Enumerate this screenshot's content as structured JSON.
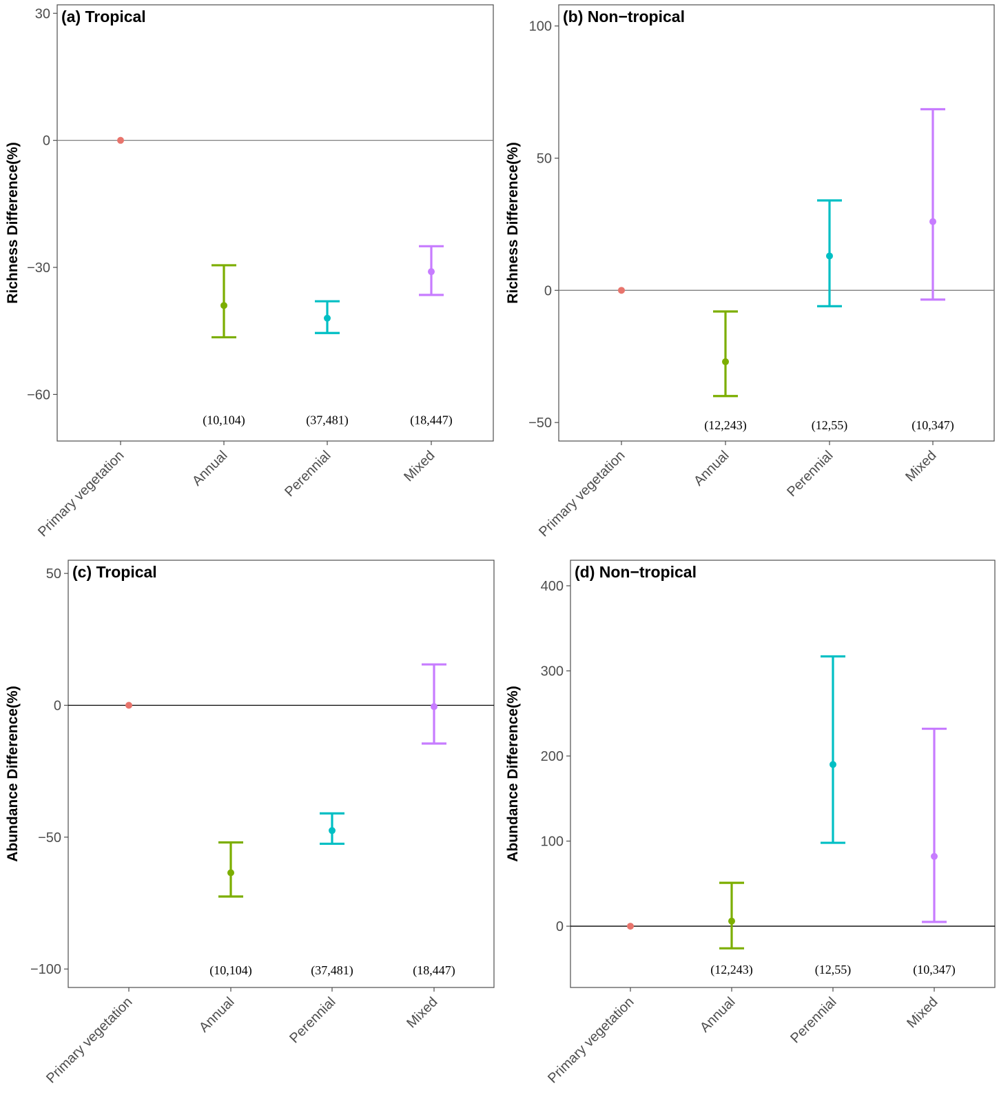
{
  "chart_data": [
    {
      "type": "errorbar",
      "title": "(a) Tropical",
      "ylabel": "Richness Difference(%)",
      "ylim": [
        -71,
        32
      ],
      "yticks": [
        30,
        0,
        -30,
        -60
      ],
      "ytick_labels": [
        "30",
        "0",
        "−30",
        "−60"
      ],
      "categories": [
        "Primary vegetation",
        "Annual",
        "Perennial",
        "Mixed"
      ],
      "values": [
        0,
        -39,
        -42,
        -31
      ],
      "lower": [
        null,
        -46.5,
        -45.5,
        -36.5
      ],
      "upper": [
        null,
        -29.5,
        -38,
        -25
      ],
      "n_labels": [
        "",
        "(10,104)",
        "(37,481)",
        "(18,447)"
      ],
      "n_label_y": -66,
      "zero_line_color": "#7f7f7f"
    },
    {
      "type": "errorbar",
      "title": "(b) Non−tropical",
      "ylabel": "Richness Difference(%)",
      "ylim": [
        -57,
        108
      ],
      "yticks": [
        100,
        50,
        0,
        -50
      ],
      "ytick_labels": [
        "100",
        "50",
        "0",
        "−50"
      ],
      "categories": [
        "Primary vegetation",
        "Annual",
        "Perennial",
        "Mixed"
      ],
      "values": [
        0,
        -27,
        13,
        26
      ],
      "lower": [
        null,
        -40,
        -6,
        -3.5
      ],
      "upper": [
        null,
        -8,
        34,
        68.5
      ],
      "n_labels": [
        "",
        "(12,243)",
        "(12,55)",
        "(10,347)"
      ],
      "n_label_y": -51,
      "zero_line_color": "#7f7f7f"
    },
    {
      "type": "errorbar",
      "title": "(c) Tropical",
      "ylabel": "Abundance Difference(%)",
      "ylim": [
        -107,
        55
      ],
      "yticks": [
        50,
        0,
        -50,
        -100
      ],
      "ytick_labels": [
        "50",
        "0",
        "−50",
        "−100"
      ],
      "categories": [
        "Primary vegetation",
        "Annual",
        "Perennial",
        "Mixed"
      ],
      "values": [
        0,
        -63.5,
        -47.5,
        -0.5
      ],
      "lower": [
        null,
        -72.5,
        -52.5,
        -14.5
      ],
      "upper": [
        null,
        -52,
        -41,
        15.5
      ],
      "n_labels": [
        "",
        "(10,104)",
        "(37,481)",
        "(18,447)"
      ],
      "n_label_y": -100.5,
      "zero_line_color": "#000000"
    },
    {
      "type": "errorbar",
      "title": "(d) Non−tropical",
      "ylabel": "Abundance Difference(%)",
      "ylim": [
        -72,
        430
      ],
      "yticks": [
        400,
        300,
        200,
        100,
        0
      ],
      "ytick_labels": [
        "400",
        "300",
        "200",
        "100",
        "0"
      ],
      "categories": [
        "Primary vegetation",
        "Annual",
        "Perennial",
        "Mixed"
      ],
      "values": [
        0,
        6,
        190,
        82
      ],
      "lower": [
        null,
        -26,
        98,
        5
      ],
      "upper": [
        null,
        51,
        317,
        232
      ],
      "n_labels": [
        "",
        "(12,243)",
        "(12,55)",
        "(10,347)"
      ],
      "n_label_y": -51,
      "zero_line_color": "#000000"
    }
  ],
  "colors": {
    "primary_vegetation": "#e8746c",
    "annual": "#7cae00",
    "perennial": "#00bfc4",
    "mixed": "#c77cff",
    "axis": "#4d4d4d"
  }
}
